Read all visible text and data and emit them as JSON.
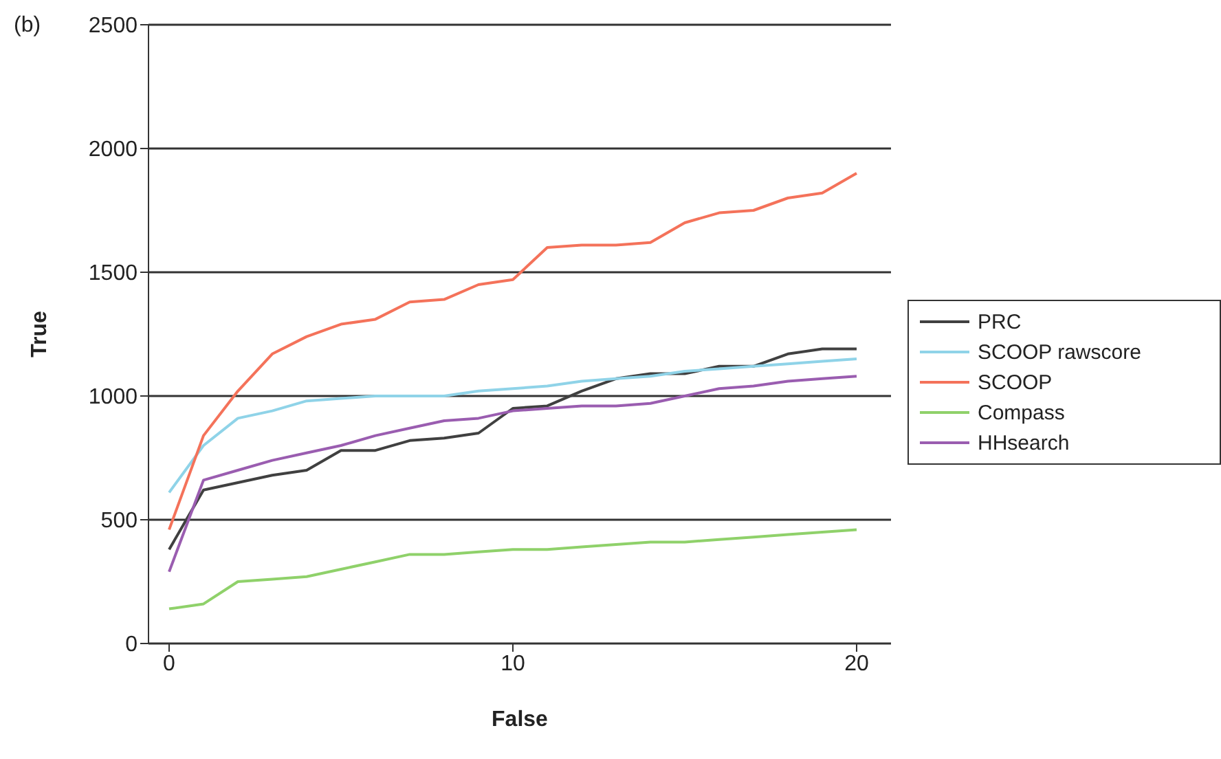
{
  "chart_data": {
    "type": "line",
    "xlabel": "False",
    "ylabel": "True",
    "annotations": [
      "(b)"
    ],
    "x": [
      0,
      1,
      2,
      3,
      4,
      5,
      6,
      7,
      8,
      9,
      10,
      11,
      12,
      13,
      14,
      15,
      16,
      17,
      18,
      19,
      20
    ],
    "series": [
      {
        "name": "PRC",
        "color": "#404040",
        "values": [
          380,
          620,
          650,
          680,
          700,
          780,
          780,
          820,
          830,
          850,
          950,
          960,
          1020,
          1070,
          1090,
          1090,
          1120,
          1120,
          1170,
          1190,
          1190
        ]
      },
      {
        "name": "SCOOP rawscore",
        "color": "#8fd3e8",
        "values": [
          610,
          800,
          910,
          940,
          980,
          990,
          1000,
          1000,
          1000,
          1020,
          1030,
          1040,
          1060,
          1070,
          1080,
          1100,
          1110,
          1120,
          1130,
          1140,
          1150
        ]
      },
      {
        "name": "SCOOP",
        "color": "#f4725a",
        "values": [
          460,
          840,
          1020,
          1170,
          1240,
          1290,
          1310,
          1380,
          1390,
          1450,
          1470,
          1600,
          1610,
          1610,
          1620,
          1700,
          1740,
          1750,
          1800,
          1820,
          1900
        ]
      },
      {
        "name": "Compass",
        "color": "#8fd16a",
        "values": [
          140,
          160,
          250,
          260,
          270,
          300,
          330,
          360,
          360,
          370,
          380,
          380,
          390,
          400,
          410,
          410,
          420,
          430,
          440,
          450,
          460
        ]
      },
      {
        "name": "HHsearch",
        "color": "#9a5db0",
        "values": [
          290,
          660,
          700,
          740,
          770,
          800,
          840,
          870,
          900,
          910,
          940,
          950,
          960,
          960,
          970,
          1000,
          1030,
          1040,
          1060,
          1070,
          1080
        ]
      }
    ],
    "xlim": [
      -0.6,
      21
    ],
    "xticks": [
      0,
      10,
      20
    ],
    "ylim": [
      0,
      2500
    ],
    "yticks": [
      0,
      500,
      1000,
      1500,
      2000,
      2500
    ],
    "grid": "y",
    "legend": "right",
    "marker": "none",
    "line_style": "solid"
  }
}
